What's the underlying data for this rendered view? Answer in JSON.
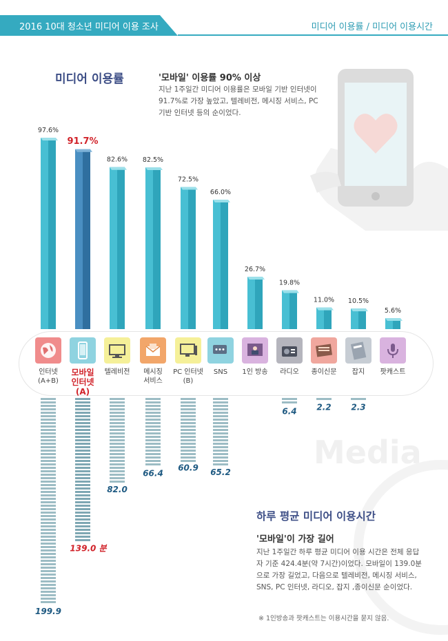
{
  "header": {
    "left_title": "2016 10대 청소년 미디어 이용 조사",
    "right_title": "미디어 이용률 / 미디어 이용시간"
  },
  "section_rate": {
    "title": "미디어 이용률",
    "subtitle": "'모바일' 이용률 90% 이상",
    "description": "지난 1주일간 미디어 이용률은 모바일 기반 인터넷이 91.7%로 가장 높았고, 텔레비전, 메시징 서비스, PC 기반 인터넷 등의 순이었다."
  },
  "section_time": {
    "title": "하루 평균 미디어 이용시간",
    "subtitle": "'모바일'이 가장 길어",
    "description": "지난 1주일간 하루 평균 미디어 이용 시간은 전체 응답자 기준 424.4분(약 7시간)이었다. 모바일이 139.0분으로 가장 길었고, 다음으로 텔레비전, 메시징 서비스, SNS, PC 인터넷, 라디오, 잡지 ,종이신문 순이었다.",
    "note": "※ 1인방송과 팟캐스트는 이용시간을 묻지 않음."
  },
  "decoration": {
    "watermark": "Media"
  },
  "colors": {
    "accent": "#35aac0",
    "highlight_bar": "#3d83b8",
    "highlight_text": "#d1232a",
    "time_stripe": "#9cbcc4"
  },
  "chart_data": [
    {
      "type": "bar",
      "name": "usage_rate",
      "categories": [
        "인터넷\n(A+B)",
        "모바일\n인터넷(A)",
        "텔레비전",
        "메시징\n서비스",
        "PC 인터넷\n(B)",
        "SNS",
        "1인 방송",
        "라디오",
        "종이신문",
        "잡지",
        "팟캐스트"
      ],
      "values": [
        97.6,
        91.7,
        82.6,
        82.5,
        72.5,
        66.0,
        26.7,
        19.8,
        11.0,
        10.5,
        5.6
      ],
      "labels": [
        "97.6%",
        "91.7%",
        "82.6%",
        "82.5%",
        "72.5%",
        "66.0%",
        "26.7%",
        "19.8%",
        "11.0%",
        "10.5%",
        "5.6%"
      ],
      "highlight_index": 1,
      "ylim": [
        0,
        100
      ]
    },
    {
      "type": "bar",
      "name": "daily_minutes",
      "categories": [
        "인터넷\n(A+B)",
        "모바일\n인터넷(A)",
        "텔레비전",
        "메시징\n서비스",
        "PC 인터넷\n(B)",
        "SNS",
        "라디오",
        "종이신문",
        "잡지"
      ],
      "values": [
        199.9,
        139.0,
        82.0,
        66.4,
        60.9,
        65.2,
        6.4,
        2.2,
        2.3
      ],
      "labels": [
        "199.9",
        "139.0 분",
        "82.0",
        "66.4",
        "60.9",
        "65.2",
        "6.4",
        "2.2",
        "2.3"
      ],
      "highlight_index": 1
    }
  ],
  "icons": [
    {
      "name": "globe-icon",
      "bg": "#f08c8c"
    },
    {
      "name": "smartphone-icon",
      "bg": "#8fd3e0"
    },
    {
      "name": "tv-icon",
      "bg": "#f5f099"
    },
    {
      "name": "envelope-icon",
      "bg": "#f2a66a"
    },
    {
      "name": "desktop-icon",
      "bg": "#f5f099"
    },
    {
      "name": "chat-icon",
      "bg": "#8fd3e0"
    },
    {
      "name": "broadcaster-icon",
      "bg": "#d9b3df"
    },
    {
      "name": "radio-icon",
      "bg": "#b5b5bd"
    },
    {
      "name": "newspaper-icon",
      "bg": "#f0a79e"
    },
    {
      "name": "magazine-icon",
      "bg": "#c7cdd4"
    },
    {
      "name": "podcast-icon",
      "bg": "#d9b3df"
    }
  ]
}
